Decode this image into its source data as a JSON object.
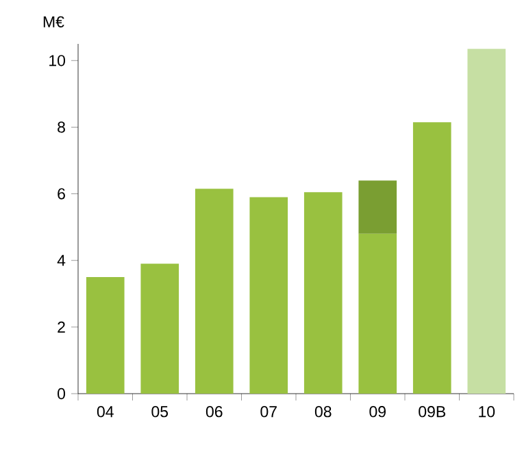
{
  "chart_data": {
    "type": "bar",
    "stacked": true,
    "ylabel": "M€",
    "categories": [
      "04",
      "05",
      "06",
      "07",
      "08",
      "09",
      "09B",
      "10"
    ],
    "series": [
      {
        "colors": [
          "#99c140",
          "#99c140",
          "#99c140",
          "#99c140",
          "#99c140",
          "#99c140",
          "#99c140",
          "#c6dfa3"
        ],
        "values": [
          3.5,
          3.9,
          6.15,
          5.9,
          6.05,
          4.8,
          8.15,
          10.35
        ]
      },
      {
        "color": "#7a9e32",
        "values": [
          null,
          null,
          null,
          null,
          null,
          1.6,
          null,
          null
        ]
      }
    ],
    "ylim": [
      0,
      10.5
    ],
    "yticks": [
      0,
      2,
      4,
      6,
      8,
      10
    ]
  }
}
